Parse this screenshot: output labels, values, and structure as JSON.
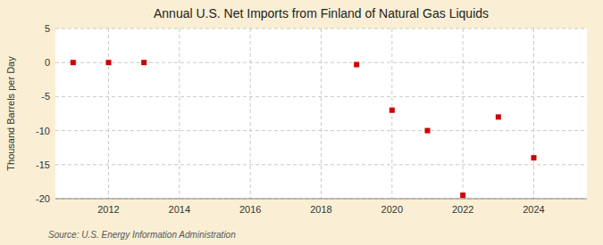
{
  "chart_data": {
    "type": "scatter",
    "title": "Annual U.S. Net Imports from Finland of Natural Gas Liquids",
    "y_label": "Thousand Barrels per Day",
    "annotation": "Source: U.S. Energy Information Administration",
    "x": [
      2011,
      2012,
      2013,
      2019,
      2020,
      2021,
      2022,
      2023,
      2024
    ],
    "values": [
      0,
      0,
      0,
      -0.3,
      -7.0,
      -10.0,
      -19.5,
      -8.0,
      -14.0
    ],
    "xlim": [
      2010.5,
      2025.5
    ],
    "ylim": [
      -20,
      5
    ],
    "xticks": [
      2012,
      2014,
      2016,
      2018,
      2020,
      2022,
      2024
    ],
    "yticks": [
      -20,
      -15,
      -10,
      -5,
      0,
      5
    ],
    "color": "#cc0000",
    "marker": "square",
    "grid": true
  }
}
